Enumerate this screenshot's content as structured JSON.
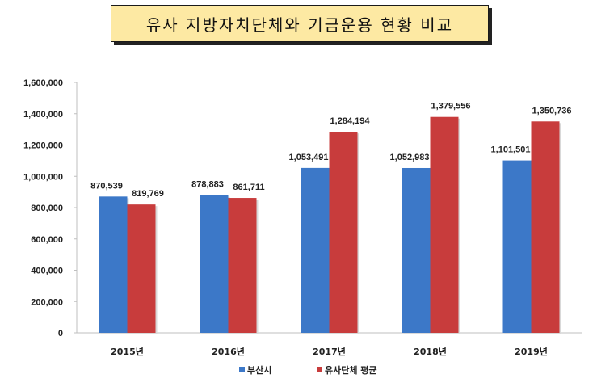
{
  "title": "유사 지방자치단체와 기금운용 현황 비교",
  "chart_data": {
    "type": "bar",
    "categories": [
      "2015년",
      "2016년",
      "2017년",
      "2018년",
      "2019년"
    ],
    "series": [
      {
        "name": "부산시",
        "color": "#3c78c8",
        "values": [
          870539,
          878883,
          1053491,
          1052983,
          1101501
        ],
        "labels": [
          "870,539",
          "878,883",
          "1,053,491",
          "1,052,983",
          "1,101,501"
        ]
      },
      {
        "name": "유사단체 평균",
        "color": "#c83c3c",
        "values": [
          819769,
          861711,
          1284194,
          1379556,
          1350736
        ],
        "labels": [
          "819,769",
          "861,711",
          "1,284,194",
          "1,379,556",
          "1,350,736"
        ]
      }
    ],
    "ylim": [
      0,
      1600000
    ],
    "yticks": [
      0,
      200000,
      400000,
      600000,
      800000,
      1000000,
      1200000,
      1400000,
      1600000
    ],
    "ytick_labels": [
      "0",
      "200,000",
      "400,000",
      "600,000",
      "800,000",
      "1,000,000",
      "1,200,000",
      "1,400,000",
      "1,600,000"
    ],
    "legend_position": "bottom",
    "grid": false
  }
}
